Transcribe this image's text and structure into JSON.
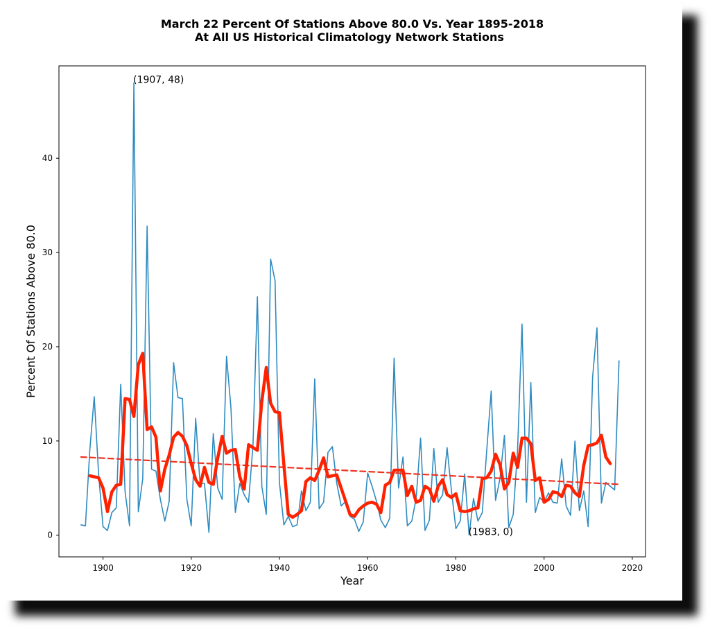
{
  "chart_data": {
    "type": "line",
    "title": "March 22 Percent Of Stations Above 80.0 Vs. Year 1895-2018",
    "subtitle": "At All US Historical Climatology Network Stations",
    "xlabel": "Year",
    "ylabel": "Percent Of Stations Above 80.0",
    "xlim": [
      1890,
      2023
    ],
    "ylim": [
      -2.3,
      49.8
    ],
    "xticks": [
      1900,
      1920,
      1940,
      1960,
      1980,
      2000,
      2020
    ],
    "yticks": [
      0,
      10,
      20,
      30,
      40
    ],
    "grid": false,
    "colors": {
      "raw": "#2e8bc0",
      "smooth": "#ff2200",
      "trend": "#ee3322"
    },
    "x": [
      1895,
      1896,
      1897,
      1898,
      1899,
      1900,
      1901,
      1902,
      1903,
      1904,
      1905,
      1906,
      1907,
      1908,
      1909,
      1910,
      1911,
      1912,
      1913,
      1914,
      1915,
      1916,
      1917,
      1918,
      1919,
      1920,
      1921,
      1922,
      1923,
      1924,
      1925,
      1926,
      1927,
      1928,
      1929,
      1930,
      1931,
      1932,
      1933,
      1934,
      1935,
      1936,
      1937,
      1938,
      1939,
      1940,
      1941,
      1942,
      1943,
      1944,
      1945,
      1946,
      1947,
      1948,
      1949,
      1950,
      1951,
      1952,
      1953,
      1954,
      1955,
      1956,
      1957,
      1958,
      1959,
      1960,
      1961,
      1962,
      1963,
      1964,
      1965,
      1966,
      1967,
      1968,
      1969,
      1970,
      1971,
      1972,
      1973,
      1974,
      1975,
      1976,
      1977,
      1978,
      1979,
      1980,
      1981,
      1982,
      1983,
      1984,
      1985,
      1986,
      1987,
      1988,
      1989,
      1990,
      1991,
      1992,
      1993,
      1994,
      1995,
      1996,
      1997,
      1998,
      1999,
      2000,
      2001,
      2002,
      2003,
      2004,
      2005,
      2006,
      2007,
      2008,
      2009,
      2010,
      2011,
      2012,
      2013,
      2014,
      2015,
      2016,
      2017
    ],
    "series": [
      {
        "role": "raw",
        "values": [
          1.1,
          1.0,
          9.0,
          14.7,
          6.5,
          0.9,
          0.5,
          2.4,
          2.9,
          16.0,
          4.6,
          1.0,
          48.0,
          2.5,
          6.0,
          32.8,
          7.0,
          6.8,
          3.8,
          1.5,
          3.6,
          18.3,
          14.6,
          14.5,
          3.8,
          1.0,
          12.4,
          5.5,
          5.5,
          0.3,
          10.8,
          5.0,
          3.8,
          19.0,
          13.5,
          2.4,
          5.5,
          4.3,
          3.5,
          9.6,
          25.3,
          5.2,
          2.2,
          29.3,
          27.0,
          5.6,
          1.1,
          2.0,
          0.9,
          1.1,
          4.7,
          2.6,
          3.5,
          16.6,
          2.8,
          3.5,
          8.8,
          9.4,
          5.5,
          3.1,
          3.6,
          2.0,
          1.7,
          0.4,
          1.4,
          6.6,
          5.2,
          3.6,
          1.6,
          0.8,
          1.8,
          18.8,
          5.0,
          8.3,
          1.0,
          1.5,
          3.9,
          10.3,
          0.5,
          1.6,
          9.2,
          3.5,
          4.3,
          9.3,
          4.7,
          0.7,
          1.5,
          6.5,
          0.0,
          3.9,
          1.5,
          2.4,
          9.0,
          15.3,
          3.7,
          6.0,
          10.6,
          0.8,
          2.2,
          9.1,
          22.4,
          3.5,
          16.2,
          2.4,
          4.0,
          3.5,
          4.5,
          3.5,
          3.4,
          8.1,
          3.1,
          2.1,
          10.0,
          2.6,
          4.7,
          0.9,
          16.8,
          22.0,
          3.4,
          5.6,
          5.2,
          4.8,
          18.5
        ]
      },
      {
        "role": "smooth",
        "x": [
          1897,
          1898,
          1899,
          1900,
          1901,
          1902,
          1903,
          1904,
          1905,
          1906,
          1907,
          1908,
          1909,
          1910,
          1911,
          1912,
          1913,
          1914,
          1915,
          1916,
          1917,
          1918,
          1919,
          1920,
          1921,
          1922,
          1923,
          1924,
          1925,
          1926,
          1927,
          1928,
          1929,
          1930,
          1931,
          1932,
          1933,
          1934,
          1935,
          1936,
          1937,
          1938,
          1939,
          1940,
          1941,
          1942,
          1943,
          1944,
          1945,
          1946,
          1947,
          1948,
          1949,
          1950,
          1951,
          1952,
          1953,
          1954,
          1955,
          1956,
          1957,
          1958,
          1959,
          1960,
          1961,
          1962,
          1963,
          1964,
          1965,
          1966,
          1967,
          1968,
          1969,
          1970,
          1971,
          1972,
          1973,
          1974,
          1975,
          1976,
          1977,
          1978,
          1979,
          1980,
          1981,
          1982,
          1983,
          1984,
          1985,
          1986,
          1987,
          1988,
          1989,
          1990,
          1991,
          1992,
          1993,
          1994,
          1995,
          1996,
          1997,
          1998,
          1999,
          2000,
          2001,
          2002,
          2003,
          2004,
          2005,
          2006,
          2007,
          2008,
          2009,
          2010,
          2011,
          2012,
          2013,
          2014,
          2015
        ],
        "values": [
          6.3,
          6.2,
          6.1,
          5.0,
          2.5,
          4.6,
          5.3,
          5.4,
          14.5,
          14.4,
          12.6,
          18.1,
          19.3,
          11.2,
          11.5,
          10.4,
          4.7,
          7.0,
          8.5,
          10.4,
          10.9,
          10.5,
          9.5,
          7.6,
          5.9,
          5.2,
          7.2,
          5.6,
          5.4,
          8.2,
          10.5,
          8.7,
          9.0,
          9.1,
          6.2,
          4.9,
          9.6,
          9.3,
          9.0,
          14.2,
          17.8,
          14.0,
          13.1,
          13.0,
          7.5,
          2.2,
          1.9,
          2.2,
          2.6,
          5.7,
          6.1,
          5.8,
          6.9,
          8.2,
          6.2,
          6.3,
          6.4,
          5.0,
          3.6,
          2.2,
          2.0,
          2.7,
          3.1,
          3.4,
          3.5,
          3.3,
          2.4,
          5.3,
          5.6,
          6.9,
          6.9,
          6.9,
          4.2,
          5.2,
          3.5,
          3.7,
          5.2,
          4.9,
          3.6,
          5.2,
          5.9,
          4.3,
          4.0,
          4.4,
          2.6,
          2.5,
          2.6,
          2.8,
          2.9,
          6.0,
          6.1,
          6.8,
          8.6,
          7.5,
          4.9,
          5.6,
          8.7,
          7.2,
          10.3,
          10.3,
          9.7,
          5.8,
          6.1,
          3.5,
          3.8,
          4.6,
          4.5,
          4.1,
          5.3,
          5.2,
          4.5,
          4.1,
          7.4,
          9.5,
          9.6,
          9.8,
          10.6,
          8.3,
          7.6
        ]
      },
      {
        "role": "trend",
        "x": [
          1895,
          2017
        ],
        "values": [
          8.3,
          5.4
        ]
      }
    ],
    "annotations": [
      {
        "x": 1907,
        "y": 48,
        "text": "(1907, 48)"
      },
      {
        "x": 1983,
        "y": 0,
        "text": "(1983, 0)"
      }
    ]
  }
}
